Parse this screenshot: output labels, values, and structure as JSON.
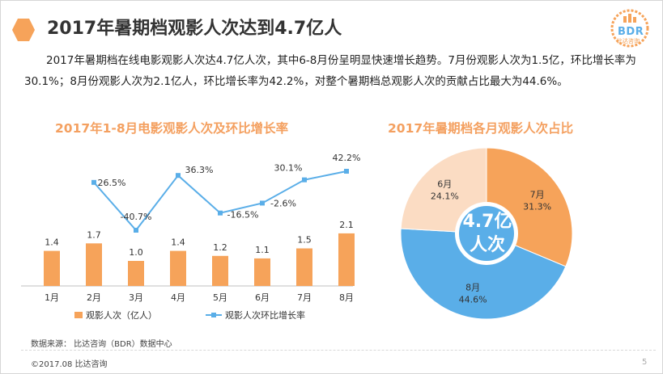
{
  "header": {
    "title": "2017年暑期档观影人次达到4.7亿人",
    "logo_text": "BDR",
    "logo_sub": "比达咨询"
  },
  "summary": "2017年暑期档在线电影观影人次达4.7亿人次，其中6-8月份呈明显快速增长趋势。7月份观影人次为1.5亿，环比增长率为30.1%；8月份观影人次为2.1亿人，环比增长率为42.2%，对整个暑期档总观影人次的贡献占比最大为44.6%。",
  "left_chart_title": "2017年1-8月电影观影人次及环比增长率",
  "right_chart_title": "2017年暑期档各月观影人次占比",
  "colors": {
    "bar": "#f6a35a",
    "line": "#5aaee8",
    "pie_7": "#f6a35a",
    "pie_8": "#5aaee8",
    "pie_6": "#fbdcc3",
    "title_orange": "#f4a060"
  },
  "chart_data": [
    {
      "type": "bar+line",
      "title": "2017年1-8月电影观影人次及环比增长率",
      "categories": [
        "1月",
        "2月",
        "3月",
        "4月",
        "5月",
        "6月",
        "7月",
        "8月"
      ],
      "series": [
        {
          "name": "观影人次（亿人）",
          "type": "bar",
          "values": [
            1.4,
            1.7,
            1.0,
            1.4,
            1.2,
            1.1,
            1.5,
            2.1
          ],
          "labels": [
            "1.4",
            "1.7",
            "1.0",
            "1.4",
            "1.2",
            "1.1",
            "1.5",
            "2.1"
          ]
        },
        {
          "name": "观影人次环比增长率",
          "type": "line",
          "unit": "%",
          "values": [
            null,
            26.5,
            -40.7,
            36.3,
            -16.5,
            -2.6,
            30.1,
            42.2
          ],
          "labels": [
            "",
            "26.5%",
            "-40.7%",
            "36.3%",
            "-16.5%",
            "-2.6%",
            "30.1%",
            "42.2%"
          ]
        }
      ],
      "legend": [
        "观影人次（亿人）",
        "观影人次环比增长率"
      ],
      "legend_position": "bottom"
    },
    {
      "type": "pie",
      "title": "2017年暑期档各月观影人次占比",
      "center_label": [
        "4.7亿",
        "人次"
      ],
      "slices": [
        {
          "label": "7月",
          "value": 31.3,
          "text": "31.3%"
        },
        {
          "label": "8月",
          "value": 44.6,
          "text": "44.6%"
        },
        {
          "label": "6月",
          "value": 24.1,
          "text": "24.1%"
        }
      ]
    }
  ],
  "footer": {
    "source": "数据来源：  比达咨询（BDR）数据中心",
    "copyright": "©2017.08 比达咨询",
    "page": "5"
  }
}
